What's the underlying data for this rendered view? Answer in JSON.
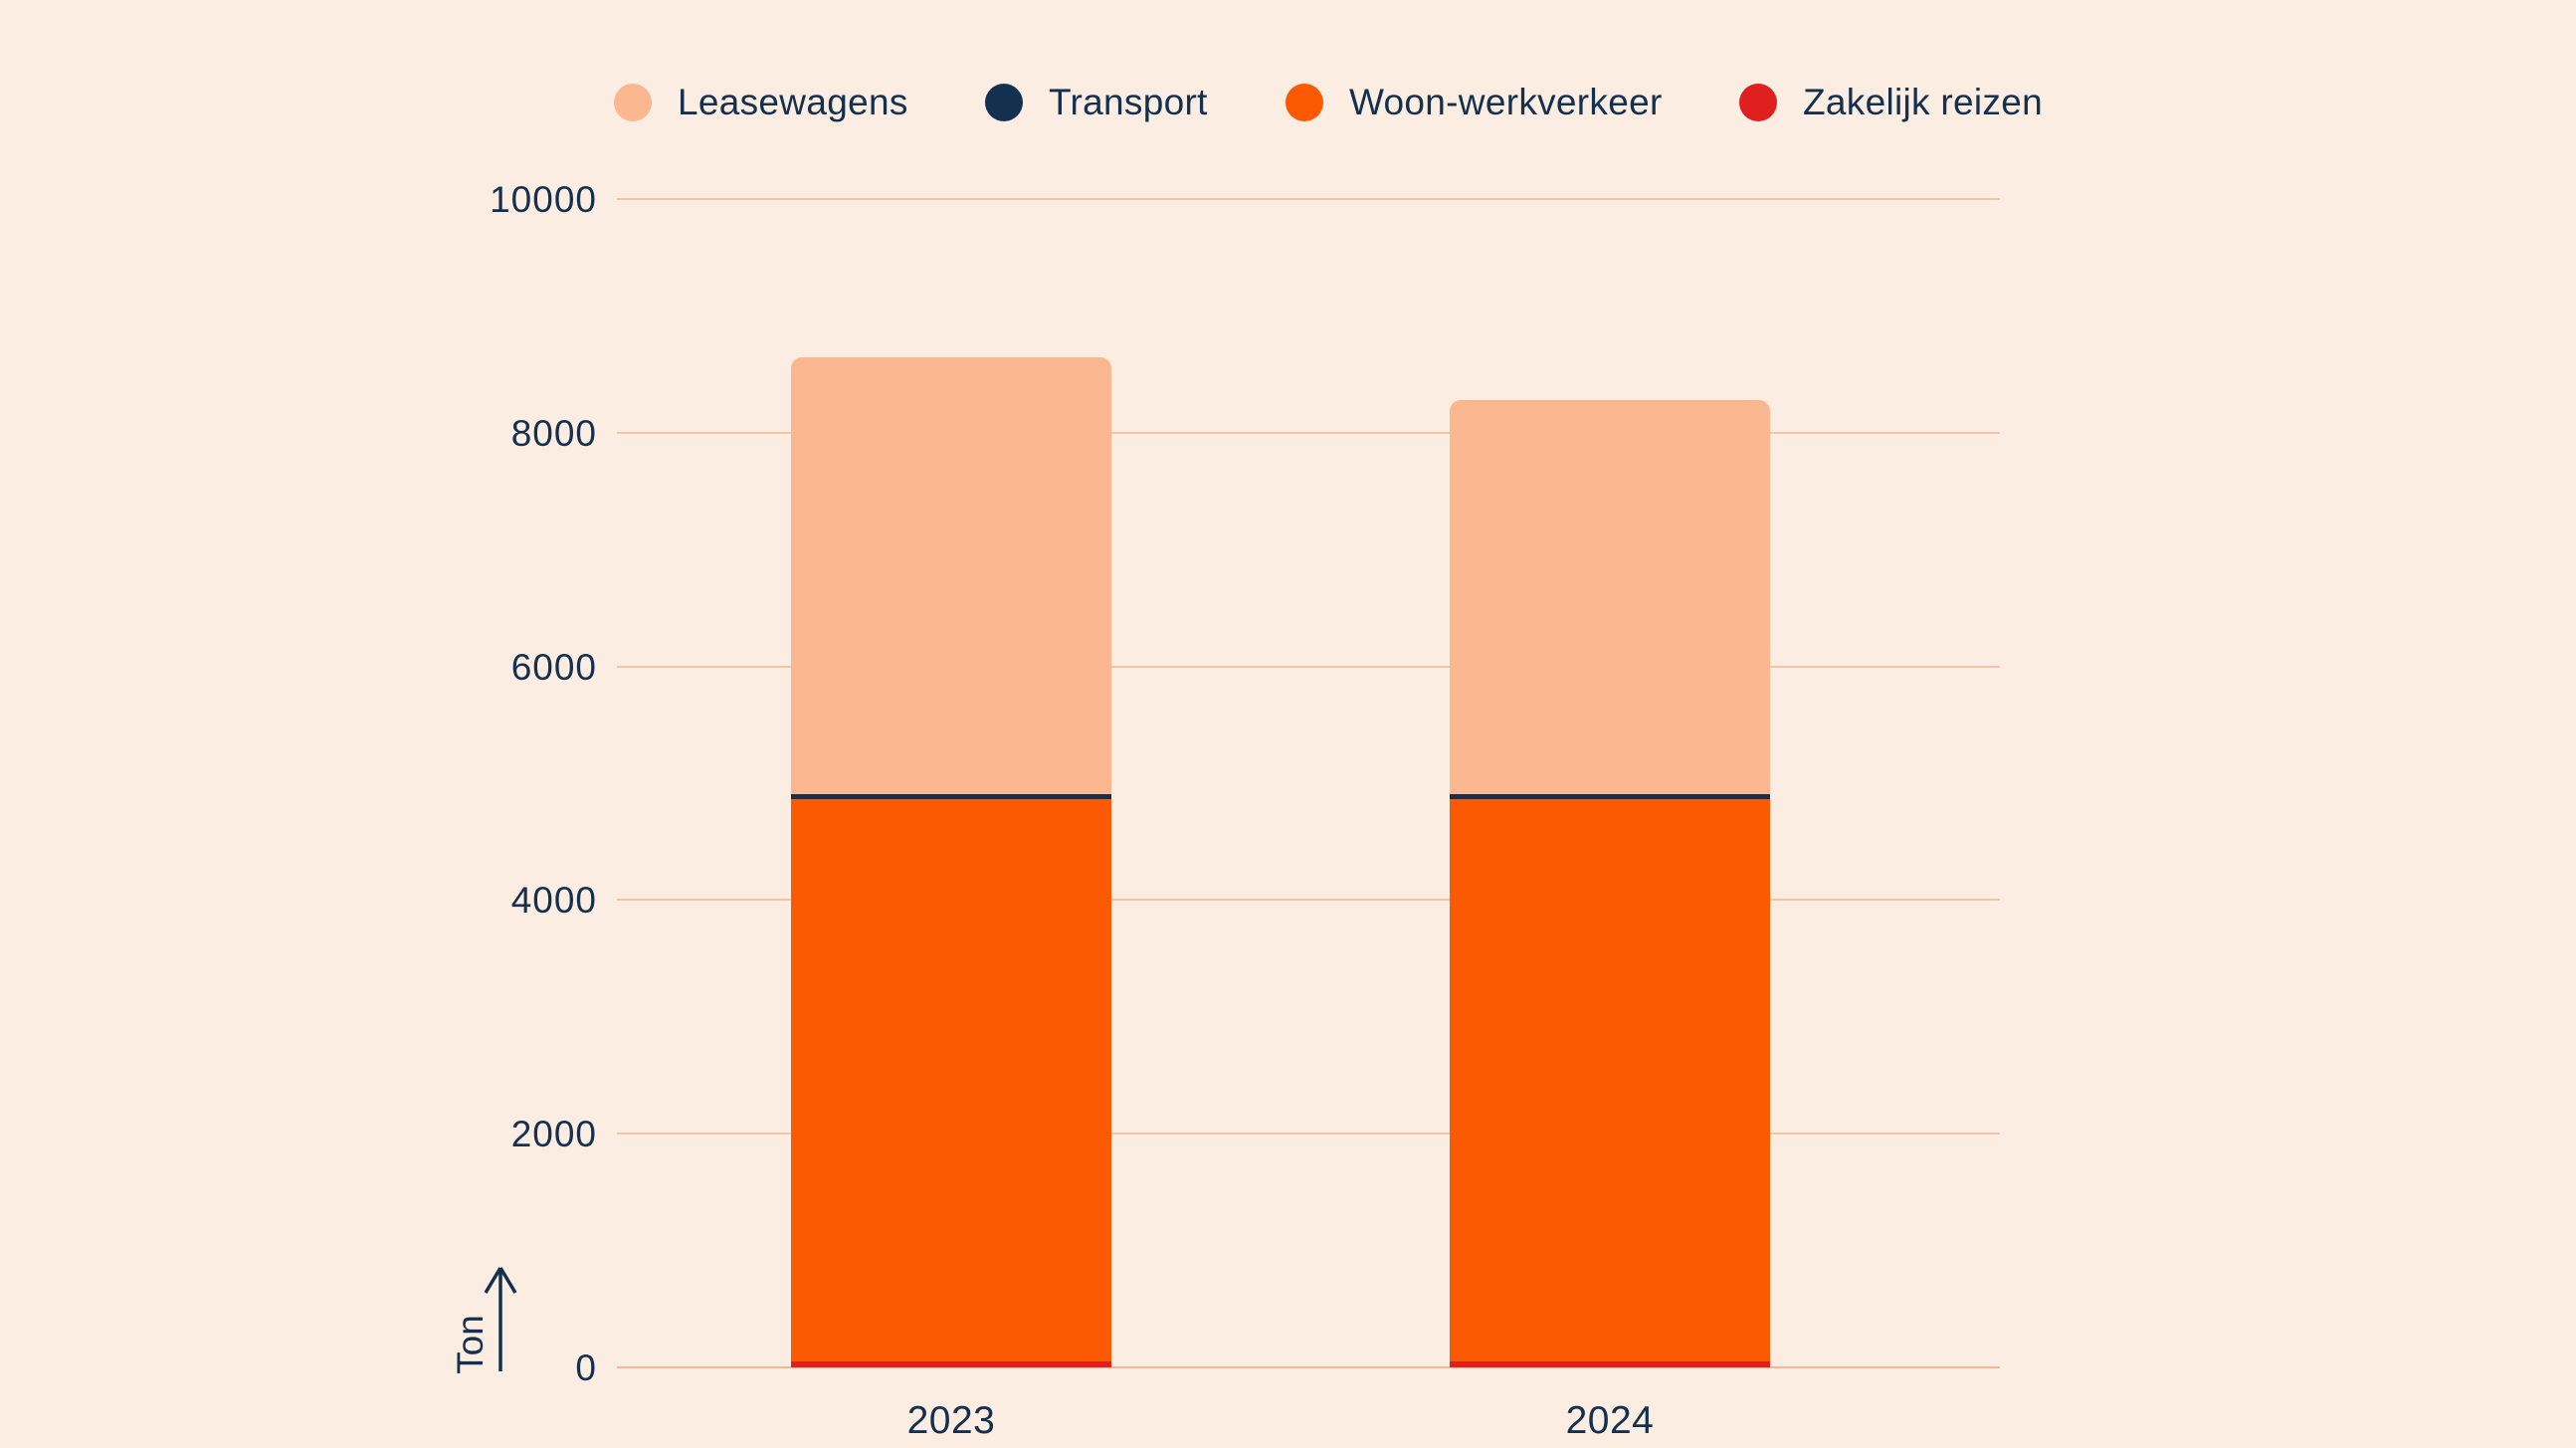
{
  "colors": {
    "background": "#FBEDE2",
    "text": "#14304E",
    "gridline": "#F5C5A3",
    "zero_line": "#F4B697",
    "leasewagens": "#FBB890",
    "transport": "#13304F",
    "woon_werkverkeer": "#FC5A02",
    "zakelijk_reizen": "#DF201E"
  },
  "legend": {
    "items": [
      {
        "label": "Leasewagens",
        "color": "#FBB890"
      },
      {
        "label": "Transport",
        "color": "#13304F"
      },
      {
        "label": "Woon-werkverkeer",
        "color": "#FC5A02"
      },
      {
        "label": "Zakelijk reizen",
        "color": "#DF201E"
      }
    ]
  },
  "chart_data": {
    "type": "bar",
    "stacked": true,
    "title": "",
    "xlabel": "",
    "ylabel": "Ton",
    "categories": [
      "2023",
      "2024"
    ],
    "ylim": [
      0,
      10000
    ],
    "yticks": [
      0,
      2000,
      4000,
      6000,
      8000,
      10000
    ],
    "ytick_labels": [
      "0",
      "2000",
      "4000",
      "6000",
      "8000",
      "10000"
    ],
    "grid": true,
    "legend_position": "top",
    "series": [
      {
        "name": "Zakelijk reizen",
        "color": "#DF201E",
        "values": [
          50,
          50
        ]
      },
      {
        "name": "Woon-werkverkeer",
        "color": "#FC5A02",
        "values": [
          4810,
          4810
        ]
      },
      {
        "name": "Transport",
        "color": "#13304F",
        "values": [
          50,
          50
        ]
      },
      {
        "name": "Leasewagens",
        "color": "#FBB890",
        "values": [
          3740,
          3370
        ]
      }
    ],
    "totals": [
      8650,
      8280
    ]
  }
}
